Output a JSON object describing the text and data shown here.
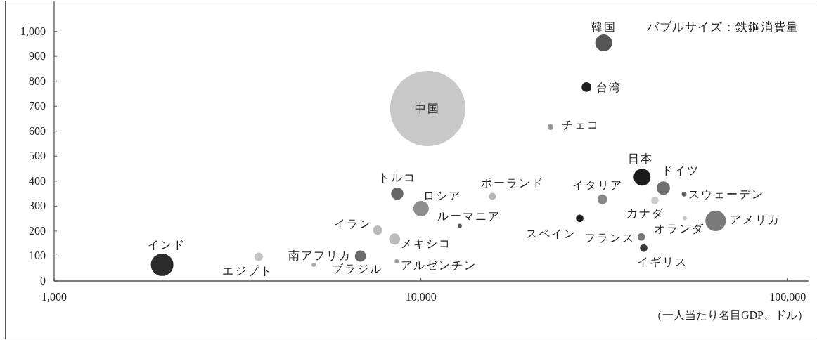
{
  "chart_data": {
    "type": "bubble",
    "xlabel": "（一人当たり名目GDP、ドル）",
    "annotations": [
      "バブルサイズ：鉄鋼消費量"
    ],
    "log": "x",
    "grid": false,
    "xlim": [
      1000,
      114000
    ],
    "ylim": [
      0,
      1120
    ],
    "xticks": [
      {
        "value": 1000,
        "label": "1,000"
      },
      {
        "value": 10000,
        "label": "10,000"
      },
      {
        "value": 100000,
        "label": "100,000"
      }
    ],
    "yticks": [
      0,
      100,
      200,
      300,
      400,
      500,
      600,
      700,
      800,
      900,
      {
        "value": 1000,
        "label": "1,000"
      }
    ],
    "series": [
      {
        "name": "インド",
        "color": "#2b2b2b",
        "x": [
          1970
        ],
        "values": [
          65
        ],
        "sizes": [
          0.089
        ]
      },
      {
        "name": "エジプト",
        "color": "#c4c4c4",
        "x": [
          3610
        ],
        "values": [
          97
        ],
        "sizes": [
          0.013
        ]
      },
      {
        "name": "南アフリカ",
        "color": "#aaaaaa",
        "x": [
          5100
        ],
        "values": [
          65
        ],
        "sizes": [
          0.003
        ]
      },
      {
        "name": "ブラジル",
        "color": "#6a6a6a",
        "x": [
          6840
        ],
        "values": [
          100
        ],
        "sizes": [
          0.022
        ]
      },
      {
        "name": "イラン",
        "color": "#bbbbbb",
        "x": [
          7620
        ],
        "values": [
          204
        ],
        "sizes": [
          0.015
        ]
      },
      {
        "name": "メキシコ",
        "color": "#bbbbbb",
        "x": [
          8480
        ],
        "values": [
          168
        ],
        "sizes": [
          0.022
        ]
      },
      {
        "name": "アルゼンチン",
        "color": "#999999",
        "x": [
          8590
        ],
        "values": [
          79
        ],
        "sizes": [
          0.003
        ]
      },
      {
        "name": "トルコ",
        "color": "#666666",
        "x": [
          8620
        ],
        "values": [
          350
        ],
        "sizes": [
          0.027
        ]
      },
      {
        "name": "ロシア",
        "color": "#8e8e8e",
        "x": [
          10010
        ],
        "values": [
          290
        ],
        "sizes": [
          0.042
        ]
      },
      {
        "name": "中国",
        "color": "#c8c8c8",
        "x": [
          10440
        ],
        "values": [
          691
        ],
        "sizes": [
          1
        ]
      },
      {
        "name": "ルーマニア",
        "color": "#555555",
        "x": [
          12760
        ],
        "values": [
          221
        ],
        "sizes": [
          0.003
        ]
      },
      {
        "name": "ポーランド",
        "color": "#b5b5b5",
        "x": [
          15670
        ],
        "values": [
          339
        ],
        "sizes": [
          0.009
        ]
      },
      {
        "name": "チェコ",
        "color": "#999999",
        "x": [
          22560
        ],
        "values": [
          617
        ],
        "sizes": [
          0.006
        ]
      },
      {
        "name": "スペイン",
        "color": "#1e1e1e",
        "x": [
          27100
        ],
        "values": [
          251
        ],
        "sizes": [
          0.01
        ]
      },
      {
        "name": "台湾",
        "color": "#1e1e1e",
        "x": [
          28280
        ],
        "values": [
          777
        ],
        "sizes": [
          0.017
        ]
      },
      {
        "name": "韓国",
        "color": "#555555",
        "x": [
          31500
        ],
        "values": [
          954
        ],
        "sizes": [
          0.05
        ]
      },
      {
        "name": "イタリア",
        "color": "#888888",
        "x": [
          31240
        ],
        "values": [
          327
        ],
        "sizes": [
          0.017
        ]
      },
      {
        "name": "フランス",
        "color": "#777777",
        "x": [
          39900
        ],
        "values": [
          177
        ],
        "sizes": [
          0.01
        ]
      },
      {
        "name": "オランダ",
        "color": "#c8c8c8",
        "x": [
          52430
        ],
        "values": [
          252
        ],
        "sizes": [
          0.003
        ]
      },
      {
        "name": "イギリス",
        "color": "#3a3a3a",
        "x": [
          40500
        ],
        "values": [
          132
        ],
        "sizes": [
          0.01
        ]
      },
      {
        "name": "日本",
        "color": "#1a1a1a",
        "x": [
          40090
        ],
        "values": [
          416
        ],
        "sizes": [
          0.05
        ]
      },
      {
        "name": "カナダ",
        "color": "#cccccc",
        "x": [
          43420
        ],
        "values": [
          323
        ],
        "sizes": [
          0.01
        ]
      },
      {
        "name": "ドイツ",
        "color": "#6e6e6e",
        "x": [
          45800
        ],
        "values": [
          372
        ],
        "sizes": [
          0.032
        ]
      },
      {
        "name": "スウェーデン",
        "color": "#666666",
        "x": [
          52180
        ],
        "values": [
          348
        ],
        "sizes": [
          0.004
        ]
      },
      {
        "name": "アメリカ",
        "color": "#7a7a7a",
        "x": [
          63610
        ],
        "values": [
          241
        ],
        "sizes": [
          0.074
        ]
      }
    ]
  }
}
